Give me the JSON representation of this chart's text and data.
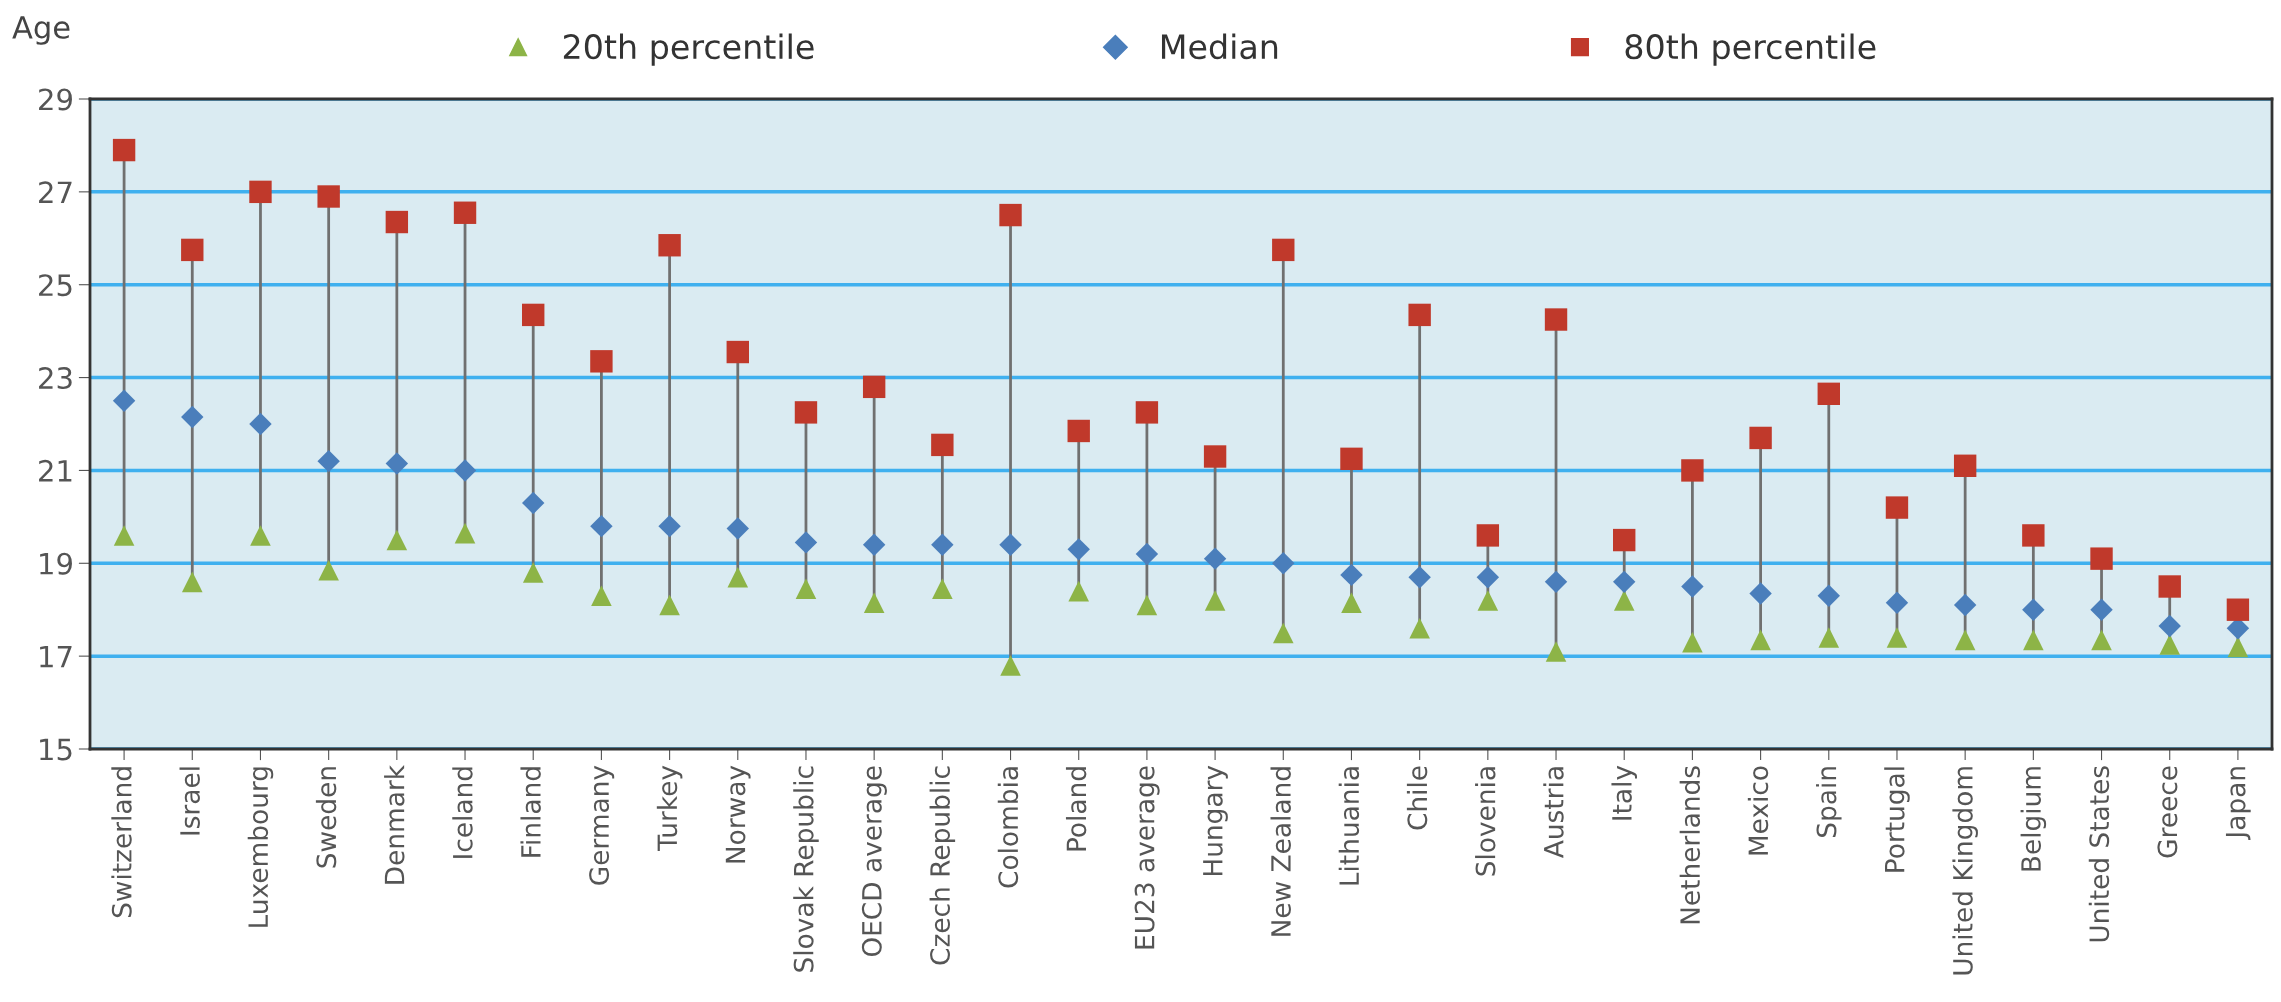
{
  "chart_data": {
    "type": "scatter",
    "ylabel": "Age",
    "categories": [
      "Switzerland",
      "Israel",
      "Luxembourg",
      "Sweden",
      "Denmark",
      "Iceland",
      "Finland",
      "Germany",
      "Turkey",
      "Norway",
      "Slovak Republic",
      "OECD average",
      "Czech Republic",
      "Colombia",
      "Poland",
      "EU23 average",
      "Hungary",
      "New Zealand",
      "Lithuania",
      "Chile",
      "Slovenia",
      "Austria",
      "Italy",
      "Netherlands",
      "Mexico",
      "Spain",
      "Portugal",
      "United Kingdom",
      "Belgium",
      "United States",
      "Greece",
      "Japan"
    ],
    "series": [
      {
        "name": "20th percentile",
        "color": "#8db447",
        "marker": "triangle",
        "values": [
          19.6,
          18.6,
          19.6,
          18.85,
          19.5,
          19.65,
          18.8,
          18.3,
          18.1,
          18.7,
          18.45,
          18.15,
          18.45,
          16.8,
          18.4,
          18.1,
          18.2,
          17.5,
          18.15,
          17.6,
          18.2,
          17.1,
          18.2,
          17.3,
          17.35,
          17.4,
          17.4,
          17.35,
          17.35,
          17.35,
          17.25,
          17.2
        ]
      },
      {
        "name": "Median",
        "color": "#4a7ebb",
        "marker": "diamond",
        "values": [
          22.5,
          22.15,
          22.0,
          21.2,
          21.15,
          21.0,
          20.3,
          19.8,
          19.8,
          19.75,
          19.45,
          19.4,
          19.4,
          19.4,
          19.3,
          19.2,
          19.1,
          19.0,
          18.75,
          18.7,
          18.7,
          18.6,
          18.6,
          18.5,
          18.35,
          18.3,
          18.15,
          18.1,
          18.0,
          18.0,
          17.65,
          17.6
        ]
      },
      {
        "name": "80th percentile",
        "color": "#c0392b",
        "marker": "square",
        "values": [
          27.9,
          25.75,
          27.0,
          26.9,
          26.35,
          26.55,
          24.35,
          23.35,
          25.85,
          23.55,
          22.25,
          22.8,
          21.55,
          26.5,
          21.85,
          22.25,
          21.3,
          25.75,
          21.25,
          24.35,
          19.6,
          24.25,
          19.5,
          21.0,
          21.7,
          22.65,
          20.2,
          21.1,
          19.6,
          19.1,
          18.5,
          18.0
        ]
      }
    ],
    "ylim": [
      15,
      29
    ],
    "yticks": [
      15,
      17,
      19,
      21,
      23,
      25,
      27,
      29
    ],
    "grid": "y",
    "legend": "top"
  }
}
